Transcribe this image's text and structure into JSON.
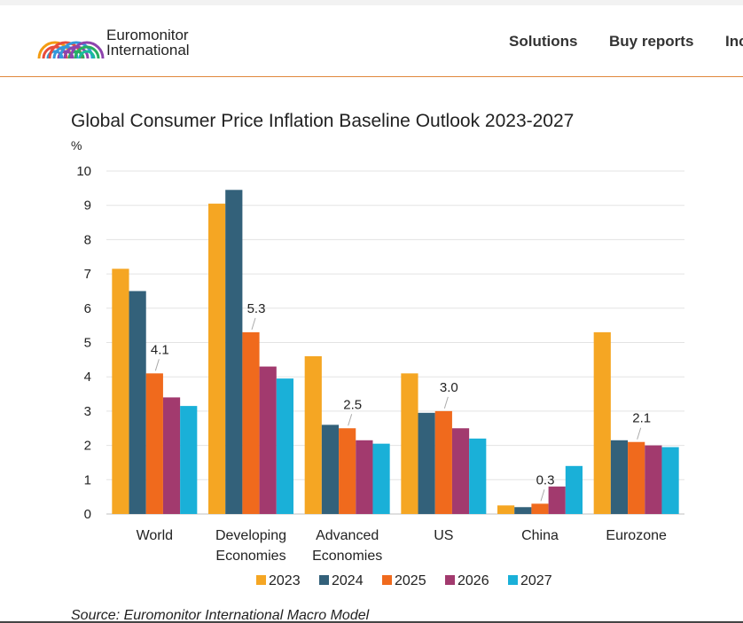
{
  "header": {
    "brand_line1": "Euromonitor",
    "brand_line2": "International",
    "logo_colors": [
      "#f39c12",
      "#e74c3c",
      "#3498db",
      "#8e44ad",
      "#27ae60",
      "#1abc9c"
    ],
    "nav": [
      {
        "label": "Solutions"
      },
      {
        "label": "Buy reports"
      },
      {
        "label": "Inc"
      }
    ],
    "accent": "#e0883c"
  },
  "chart_data": {
    "type": "bar",
    "title": "Global Consumer Price Inflation Baseline Outlook 2023-2027",
    "ylabel": "%",
    "ylim": [
      0,
      10
    ],
    "yticks": [
      0,
      1,
      2,
      3,
      4,
      5,
      6,
      7,
      8,
      9,
      10
    ],
    "grid": true,
    "legend": "bottom",
    "categories": [
      [
        "World"
      ],
      [
        "Developing",
        "Economies"
      ],
      [
        "Advanced",
        "Economies"
      ],
      [
        "US"
      ],
      [
        "China"
      ],
      [
        "Eurozone"
      ]
    ],
    "series": [
      {
        "name": "2023",
        "color": "#f5a623",
        "values": [
          7.15,
          9.05,
          4.6,
          4.1,
          0.25,
          5.3
        ]
      },
      {
        "name": "2024",
        "color": "#33617a",
        "values": [
          6.5,
          9.45,
          2.6,
          2.95,
          0.2,
          2.15
        ]
      },
      {
        "name": "2025",
        "color": "#f06a1d",
        "values": [
          4.1,
          5.3,
          2.5,
          3.0,
          0.3,
          2.1
        ]
      },
      {
        "name": "2026",
        "color": "#a23a6e",
        "values": [
          3.4,
          4.3,
          2.15,
          2.5,
          0.8,
          2.0
        ]
      },
      {
        "name": "2027",
        "color": "#1ab0d8",
        "values": [
          3.15,
          3.95,
          2.05,
          2.2,
          1.4,
          1.95
        ]
      }
    ],
    "annotations": [
      {
        "category": 0,
        "series": 2,
        "text": "4.1"
      },
      {
        "category": 1,
        "series": 2,
        "text": "5.3"
      },
      {
        "category": 2,
        "series": 2,
        "text": "2.5"
      },
      {
        "category": 3,
        "series": 2,
        "text": "3.0"
      },
      {
        "category": 4,
        "series": 2,
        "text": "0.3"
      },
      {
        "category": 5,
        "series": 2,
        "text": "2.1"
      }
    ],
    "source": "Source: Euromonitor International Macro Model"
  }
}
